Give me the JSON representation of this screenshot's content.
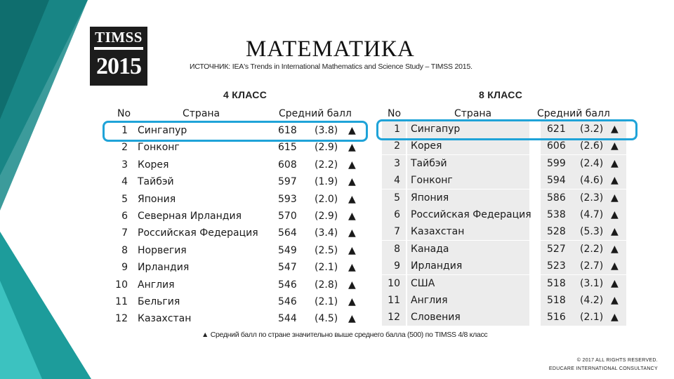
{
  "logo": {
    "line1": "TIMSS",
    "line2": "2015"
  },
  "title": "МАТЕМАТИКА",
  "source": "ИСТОЧНИК: IEA's Trends in International Mathematics and Science Study – TIMSS 2015.",
  "colors": {
    "teal_dark": "#0f6e6e",
    "teal": "#1d9c9b",
    "teal_light": "#3cc2c0",
    "highlight": "#1fa3d8",
    "row_bg": "#ececec"
  },
  "grade4": {
    "title": "4 КЛАСС",
    "headers": {
      "no": "No",
      "country": "Страна",
      "score": "Средний балл"
    },
    "rows": [
      {
        "no": "1",
        "country": "Сингапур",
        "score": "618",
        "se": "(3.8)",
        "mark": "▲"
      },
      {
        "no": "2",
        "country": "Гонконг",
        "score": "615",
        "se": "(2.9)",
        "mark": "▲"
      },
      {
        "no": "3",
        "country": "Корея",
        "score": "608",
        "se": "(2.2)",
        "mark": "▲"
      },
      {
        "no": "4",
        "country": "Тайбэй",
        "score": "597",
        "se": "(1.9)",
        "mark": "▲"
      },
      {
        "no": "5",
        "country": "Япония",
        "score": "593",
        "se": "(2.0)",
        "mark": "▲"
      },
      {
        "no": "6",
        "country": "Северная Ирландия",
        "score": "570",
        "se": "(2.9)",
        "mark": "▲"
      },
      {
        "no": "7",
        "country": "Российская Федерация",
        "score": "564",
        "se": "(3.4)",
        "mark": "▲"
      },
      {
        "no": "8",
        "country": "Норвегия",
        "score": "549",
        "se": "(2.5)",
        "mark": "▲"
      },
      {
        "no": "9",
        "country": "Ирландия",
        "score": "547",
        "se": "(2.1)",
        "mark": "▲"
      },
      {
        "no": "10",
        "country": "Англия",
        "score": "546",
        "se": "(2.8)",
        "mark": "▲"
      },
      {
        "no": "11",
        "country": "Бельгия",
        "score": "546",
        "se": "(2.1)",
        "mark": "▲"
      },
      {
        "no": "12",
        "country": "Казахстан",
        "score": "544",
        "se": "(4.5)",
        "mark": "▲"
      }
    ]
  },
  "grade8": {
    "title": "8 КЛАСС",
    "headers": {
      "no": "No",
      "country": "Страна",
      "score": "Средний балл"
    },
    "rows": [
      {
        "no": "1",
        "country": "Сингапур",
        "score": "621",
        "se": "(3.2)",
        "mark": "▲"
      },
      {
        "no": "2",
        "country": "Корея",
        "score": "606",
        "se": "(2.6)",
        "mark": "▲"
      },
      {
        "no": "3",
        "country": "Тайбэй",
        "score": "599",
        "se": "(2.4)",
        "mark": "▲"
      },
      {
        "no": "4",
        "country": "Гонконг",
        "score": "594",
        "se": "(4.6)",
        "mark": "▲"
      },
      {
        "no": "5",
        "country": "Япония",
        "score": "586",
        "se": "(2.3)",
        "mark": "▲"
      },
      {
        "no": "6",
        "country": "Российская Федерация",
        "score": "538",
        "se": "(4.7)",
        "mark": "▲"
      },
      {
        "no": "7",
        "country": "Казахстан",
        "score": "528",
        "se": "(5.3)",
        "mark": "▲"
      },
      {
        "no": "8",
        "country": "Канада",
        "score": "527",
        "se": "(2.2)",
        "mark": "▲"
      },
      {
        "no": "9",
        "country": "Ирландия",
        "score": "523",
        "se": "(2.7)",
        "mark": "▲"
      },
      {
        "no": "10",
        "country": "США",
        "score": "518",
        "se": "(3.1)",
        "mark": "▲"
      },
      {
        "no": "11",
        "country": "Англия",
        "score": "518",
        "se": "(4.2)",
        "mark": "▲"
      },
      {
        "no": "12",
        "country": "Словения",
        "score": "516",
        "se": "(2.1)",
        "mark": "▲"
      }
    ]
  },
  "note": "▲ Средний балл по стране значительно выше среднего балла (500) по TIMSS 4/8 класс",
  "copyright": {
    "line1": "© 2017 ALL RIGHTS RESERVED.",
    "line2": "EDUCARE INTERNATIONAL CONSULTANCY"
  }
}
